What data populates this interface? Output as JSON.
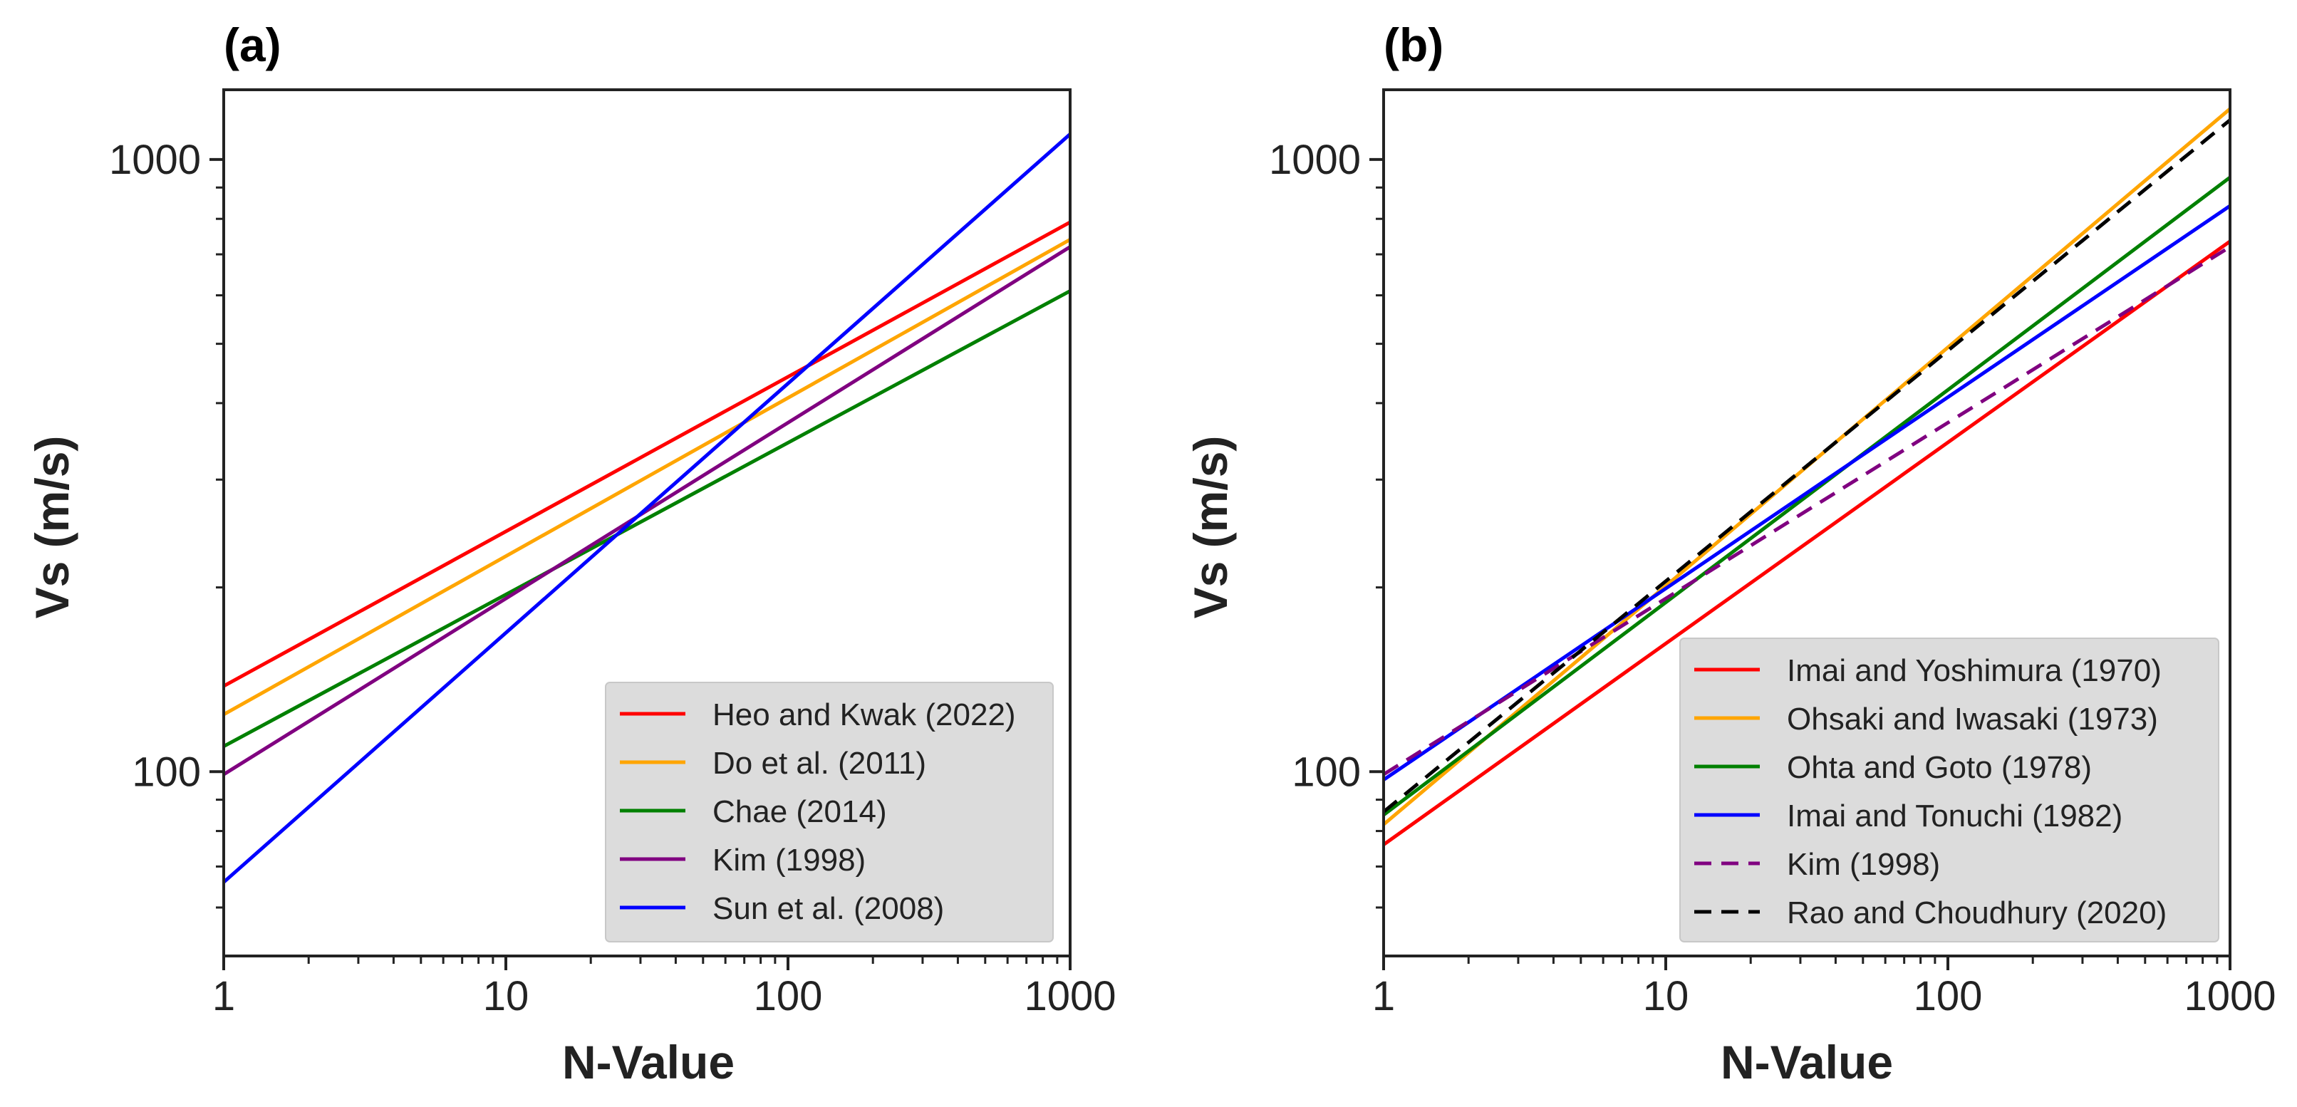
{
  "chart_data": [
    {
      "type": "line",
      "panel_label": "(a)",
      "xlabel": "N-Value",
      "ylabel": "Vs (m/s)",
      "x_scale": "log",
      "y_scale": "log",
      "xlim": [
        1,
        1000
      ],
      "ylim": [
        50,
        1300
      ],
      "x_ticks": [
        1,
        10,
        100,
        1000
      ],
      "x_tick_labels": [
        "1",
        "10",
        "100",
        "1000"
      ],
      "y_ticks": [
        100,
        1000
      ],
      "y_tick_labels": [
        "100",
        "1000"
      ],
      "legend_position": "lower-right",
      "series": [
        {
          "name": "Heo and Kwak (2022)",
          "color": "#ff0000",
          "dash": "solid",
          "x": [
            1,
            1000
          ],
          "y": [
            138,
            790
          ]
        },
        {
          "name": "Do et al. (2011)",
          "color": "#ffa500",
          "dash": "solid",
          "x": [
            1,
            1000
          ],
          "y": [
            124,
            740
          ]
        },
        {
          "name": "Chae (2014)",
          "color": "#008000",
          "dash": "solid",
          "x": [
            1,
            1000
          ],
          "y": [
            110,
            610
          ]
        },
        {
          "name": "Kim (1998)",
          "color": "#800080",
          "dash": "solid",
          "x": [
            1,
            1000
          ],
          "y": [
            99,
            720
          ]
        },
        {
          "name": "Sun et al. (2008)",
          "color": "#0000ff",
          "dash": "solid",
          "x": [
            1,
            1000
          ],
          "y": [
            66,
            1100
          ]
        }
      ]
    },
    {
      "type": "line",
      "panel_label": "(b)",
      "xlabel": "N-Value",
      "ylabel": "Vs (m/s)",
      "x_scale": "log",
      "y_scale": "log",
      "xlim": [
        1,
        1000
      ],
      "ylim": [
        50,
        1300
      ],
      "x_ticks": [
        1,
        10,
        100,
        1000
      ],
      "x_tick_labels": [
        "1",
        "10",
        "100",
        "1000"
      ],
      "y_ticks": [
        100,
        1000
      ],
      "y_tick_labels": [
        "100",
        "1000"
      ],
      "legend_position": "lower-right",
      "series": [
        {
          "name": "Imai and Yoshimura (1970)",
          "color": "#ff0000",
          "dash": "solid",
          "x": [
            1,
            1000
          ],
          "y": [
            76,
            735
          ]
        },
        {
          "name": "Ohsaki and Iwasaki (1973)",
          "color": "#ffa500",
          "dash": "solid",
          "x": [
            1,
            1000
          ],
          "y": [
            82,
            1210
          ]
        },
        {
          "name": "Ohta and Goto (1978)",
          "color": "#008000",
          "dash": "solid",
          "x": [
            1,
            1000
          ],
          "y": [
            85,
            935
          ]
        },
        {
          "name": "Imai and Tonuchi (1982)",
          "color": "#0000ff",
          "dash": "solid",
          "x": [
            1,
            1000
          ],
          "y": [
            97,
            840
          ]
        },
        {
          "name": "Kim (1998)",
          "color": "#800080",
          "dash": "dashed",
          "x": [
            1,
            1000
          ],
          "y": [
            99,
            720
          ]
        },
        {
          "name": "Rao and Choudhury (2020)",
          "color": "#000000",
          "dash": "dashed",
          "x": [
            1,
            1000
          ],
          "y": [
            86,
            1160
          ]
        }
      ]
    }
  ]
}
